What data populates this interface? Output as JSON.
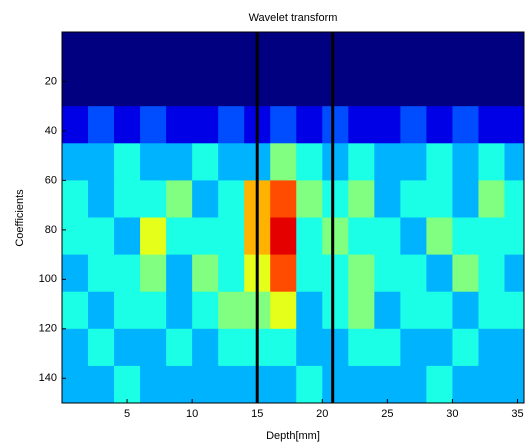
{
  "chart_data": {
    "type": "heatmap",
    "title": "Wavelet transform",
    "x_label": "Depth[mm]",
    "y_label": "Coefficients",
    "xlim": [
      0,
      35.5
    ],
    "ylim": [
      0,
      150
    ],
    "y_reversed": true,
    "xticks": [
      5,
      10,
      15,
      20,
      25,
      30,
      35
    ],
    "yticks": [
      20,
      40,
      60,
      80,
      100,
      120,
      140
    ],
    "x_bins": [
      0,
      2,
      4,
      6,
      8,
      10,
      12,
      14,
      16,
      18,
      20,
      22,
      24,
      26,
      28,
      30,
      32,
      34,
      36
    ],
    "y_bins": [
      0,
      15,
      30,
      45,
      60,
      75,
      90,
      105,
      120,
      135,
      150
    ],
    "zlim": [
      0,
      10
    ],
    "colormap": "jet",
    "z": [
      [
        0,
        0,
        0,
        0,
        0,
        0,
        0,
        0,
        0,
        0,
        0,
        0,
        0,
        0,
        0,
        0,
        0,
        0
      ],
      [
        0,
        0,
        0,
        0,
        0,
        0,
        0,
        0,
        0,
        0,
        0,
        0,
        0,
        0,
        0,
        0,
        0,
        0
      ],
      [
        1,
        2,
        1,
        2,
        1,
        1,
        2,
        1,
        2,
        1,
        2,
        1,
        1,
        2,
        1,
        2,
        1,
        1
      ],
      [
        3,
        3,
        4,
        3,
        3,
        4,
        3,
        3,
        5,
        4,
        3,
        4,
        3,
        3,
        4,
        3,
        4,
        3
      ],
      [
        4,
        3,
        4,
        4,
        5,
        3,
        4,
        7,
        8,
        5,
        4,
        5,
        3,
        4,
        4,
        3,
        5,
        4
      ],
      [
        4,
        4,
        3,
        6,
        4,
        4,
        4,
        7,
        9,
        4,
        5,
        4,
        4,
        3,
        5,
        4,
        4,
        4
      ],
      [
        3,
        4,
        4,
        5,
        3,
        5,
        4,
        6,
        8,
        4,
        4,
        5,
        4,
        4,
        3,
        5,
        4,
        3
      ],
      [
        4,
        3,
        4,
        4,
        3,
        4,
        5,
        5,
        6,
        3,
        4,
        5,
        3,
        4,
        4,
        3,
        4,
        4
      ],
      [
        3,
        4,
        3,
        3,
        4,
        3,
        4,
        4,
        4,
        3,
        3,
        4,
        4,
        3,
        3,
        4,
        3,
        3
      ],
      [
        3,
        3,
        4,
        3,
        3,
        3,
        3,
        3,
        3,
        4,
        3,
        3,
        3,
        3,
        4,
        3,
        3,
        3
      ]
    ],
    "markers": [
      15,
      20.8
    ],
    "marker_color": "#000000"
  }
}
